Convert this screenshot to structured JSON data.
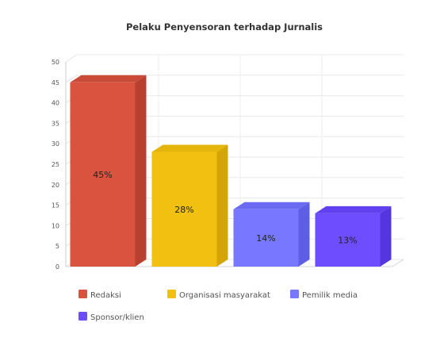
{
  "chart_data": {
    "type": "bar",
    "title": "Pelaku Penyensoran terhadap Jurnalis",
    "xlabel": "",
    "ylabel": "",
    "ylim": [
      0,
      50
    ],
    "yticks": [
      0,
      5,
      10,
      15,
      20,
      25,
      30,
      35,
      40,
      45,
      50
    ],
    "grid": true,
    "legend_position": "bottom",
    "style": "3d",
    "series": [
      {
        "name": "Redaksi",
        "value": 45,
        "label": "45%",
        "color": "#d9533f",
        "side": "#b8402f",
        "top": "#c94a36"
      },
      {
        "name": "Organisasi masyarakat",
        "value": 28,
        "label": "28%",
        "color": "#f2c010",
        "side": "#d4a507",
        "top": "#e6b50b"
      },
      {
        "name": "Pemilik media",
        "value": 14,
        "label": "14%",
        "color": "#7777ff",
        "side": "#5d5de6",
        "top": "#6a6af2"
      },
      {
        "name": "Sponsor/klien",
        "value": 13,
        "label": "13%",
        "color": "#6e4dff",
        "side": "#5535e0",
        "top": "#6140f0"
      }
    ]
  }
}
